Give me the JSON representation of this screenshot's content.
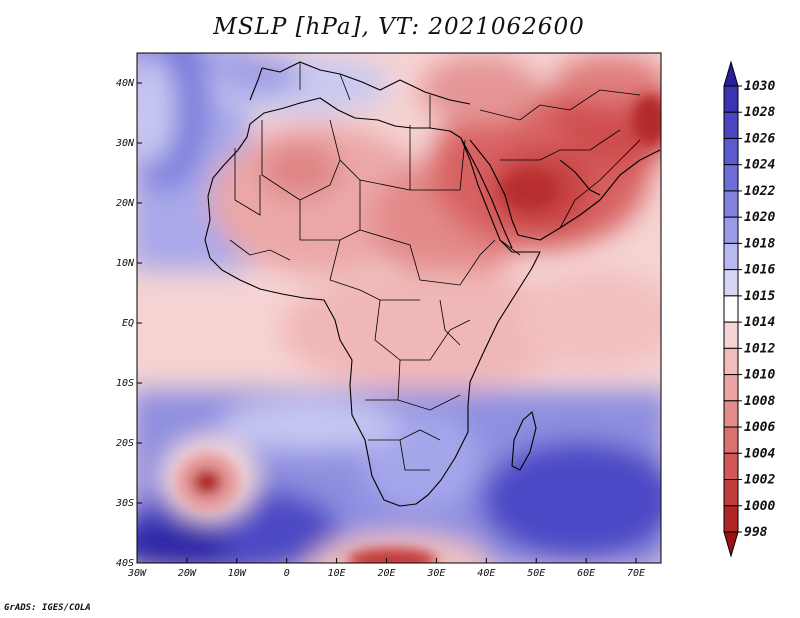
{
  "map": {
    "title": "MSLP [hPa], VT: 2021062600",
    "variable": "MSLP",
    "unit": "hPa",
    "valid_time": "2021062600",
    "longitude_ticks": [
      "30W",
      "20W",
      "10W",
      "0",
      "10E",
      "20E",
      "30E",
      "40E",
      "50E",
      "60E",
      "70E"
    ],
    "latitude_ticks": [
      "40N",
      "30N",
      "20N",
      "10N",
      "EQ",
      "10S",
      "20S",
      "30S",
      "40S"
    ],
    "region": "Africa, Middle East and surrounding oceans",
    "extent": {
      "lon_min": -30,
      "lon_max": 75,
      "lat_min": -40,
      "lat_max": 45
    }
  },
  "colorbar": {
    "levels": [
      "1030",
      "1028",
      "1026",
      "1024",
      "1022",
      "1020",
      "1018",
      "1016",
      "1015",
      "1014",
      "1012",
      "1010",
      "1008",
      "1006",
      "1004",
      "1002",
      "1000",
      "998"
    ],
    "colors": [
      "#2a1f9a",
      "#3a33b2",
      "#4b46c4",
      "#5c5acf",
      "#6d6ed8",
      "#8181df",
      "#9b9ce7",
      "#b8b9ef",
      "#d6d7f7",
      "#ffffff",
      "#f7d4d4",
      "#f3bcbc",
      "#eca4a4",
      "#e48b8b",
      "#db7070",
      "#d25757",
      "#c43d3d",
      "#b02525",
      "#981414"
    ]
  },
  "credit": "GrADS: IGES/COLA"
}
